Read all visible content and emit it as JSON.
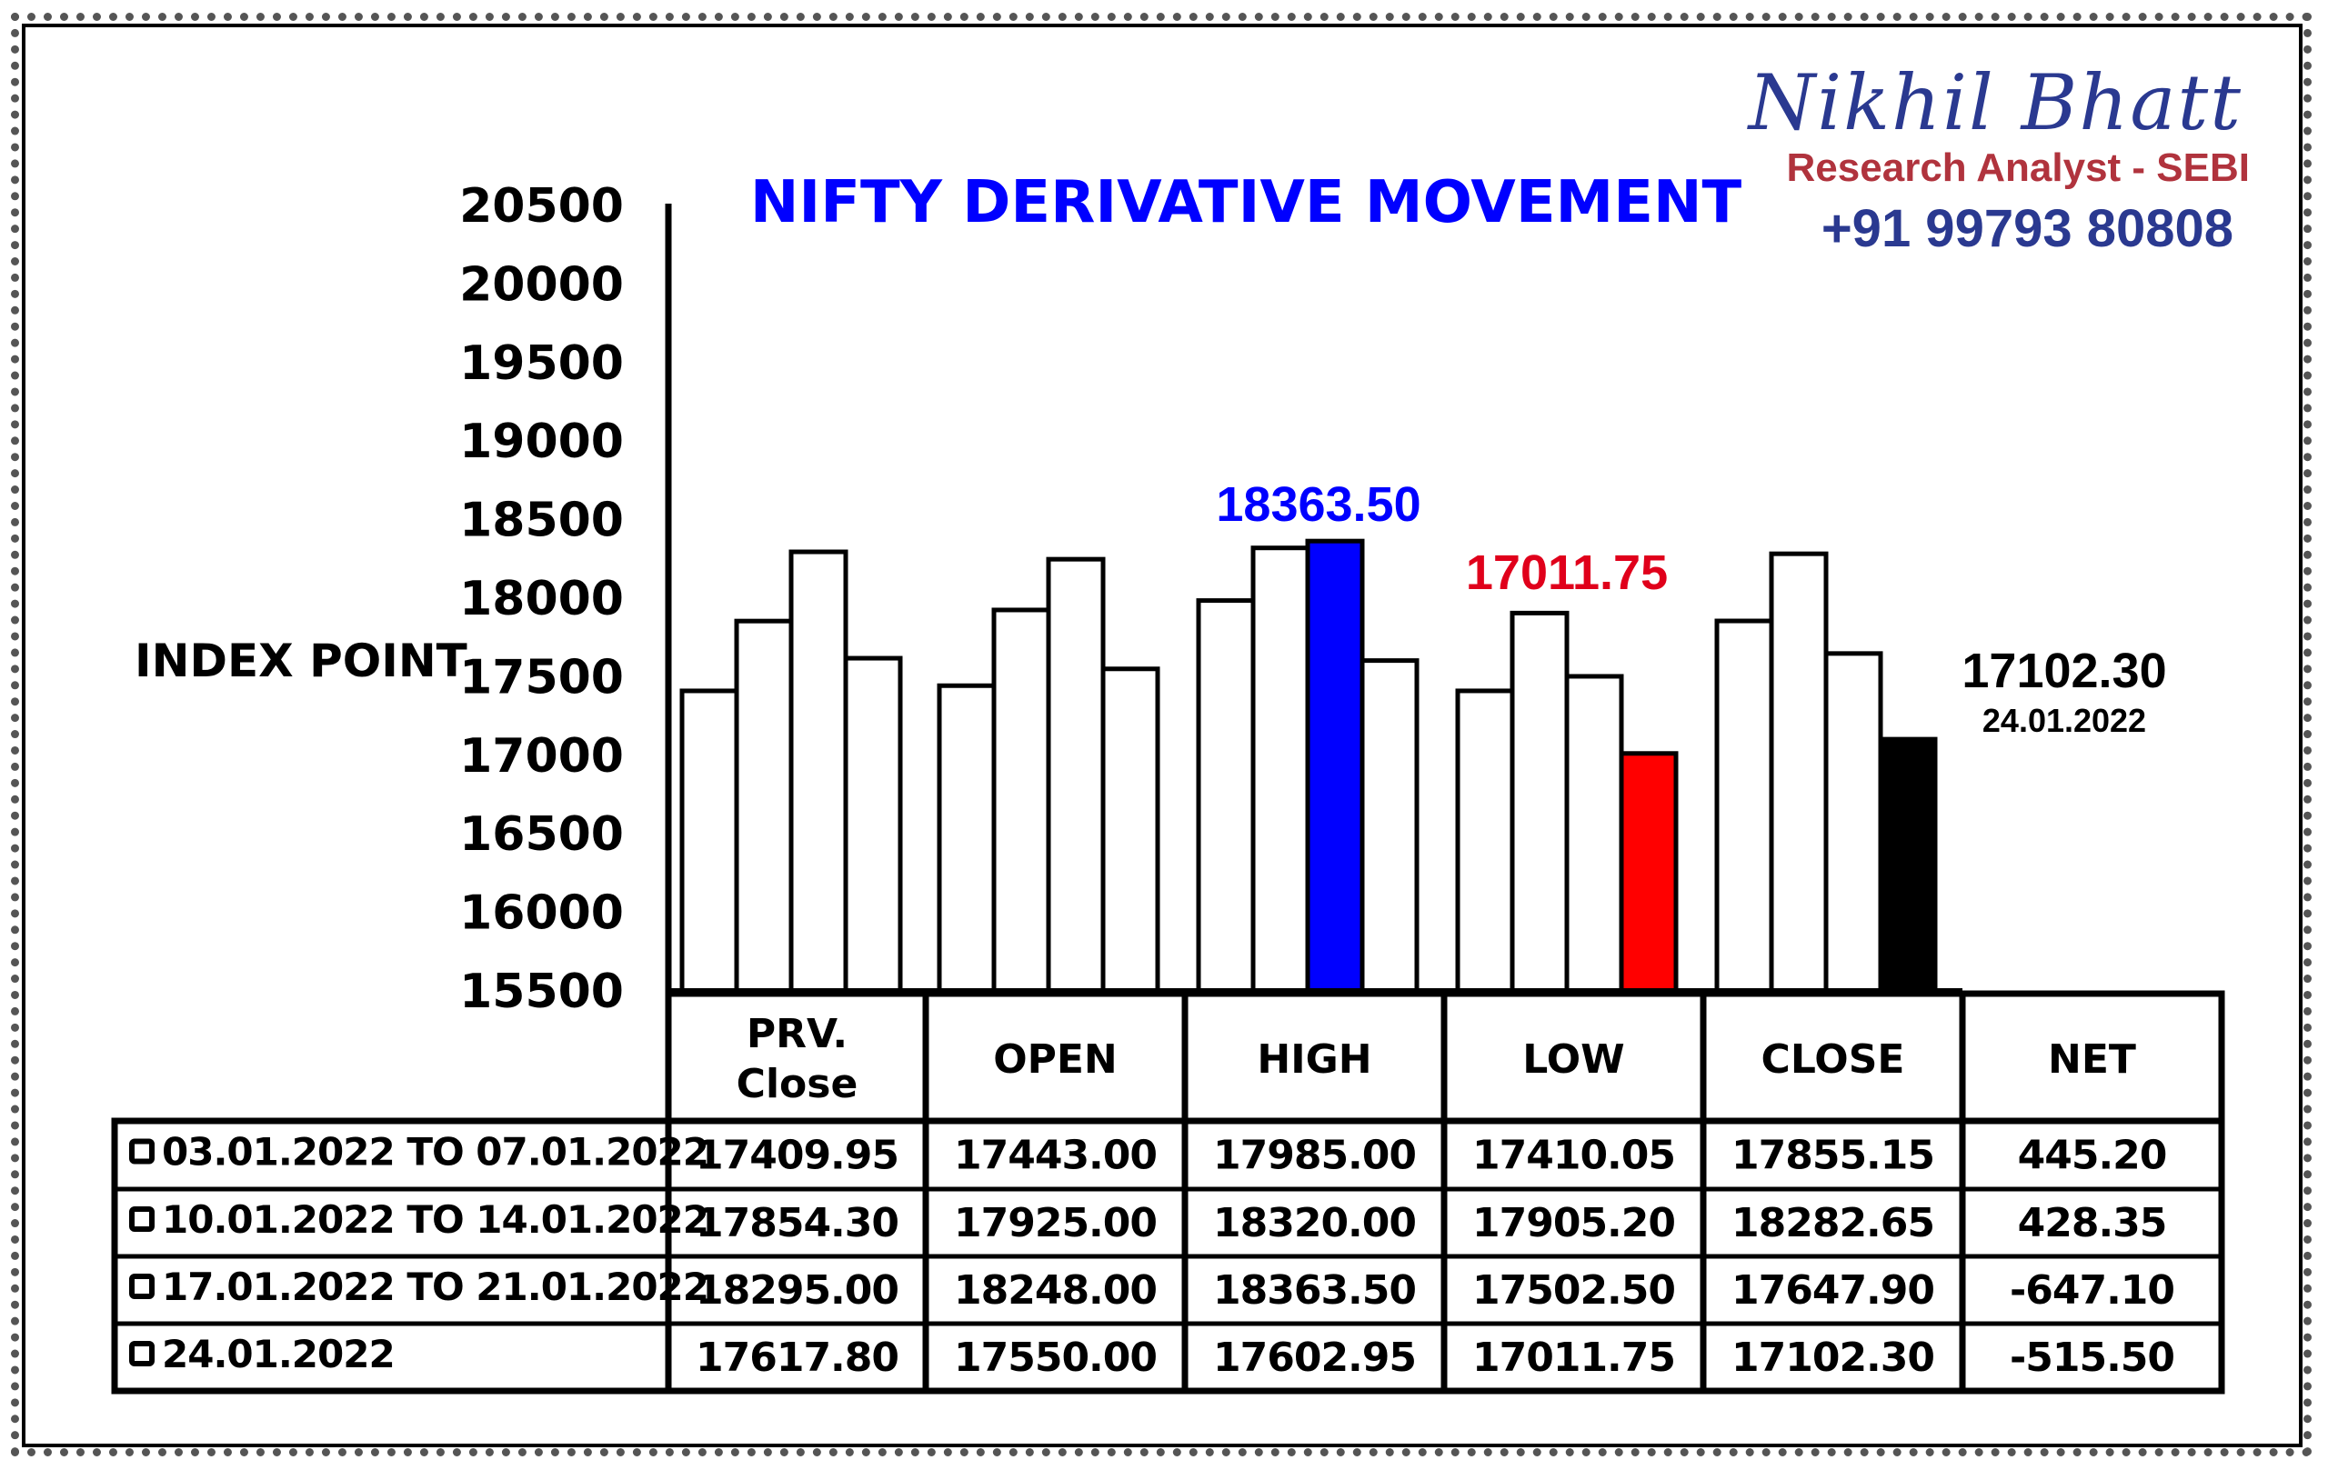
{
  "brand": {
    "name": "Nikhil Bhatt",
    "role": "Research Analyst - SEBI",
    "phone": "+91 99793 80808"
  },
  "chart_data": {
    "type": "bar",
    "title": "NIFTY DERIVATIVE MOVEMENT",
    "ylabel": "INDEX POINT",
    "ylim": [
      15500,
      20500
    ],
    "yticks": [
      20500,
      20000,
      19500,
      19000,
      18500,
      18000,
      17500,
      17000,
      16500,
      16000,
      15500
    ],
    "categories": [
      "PRV.\nClose",
      "OPEN",
      "HIGH",
      "LOW",
      "CLOSE"
    ],
    "category_labels": [
      [
        "PRV.",
        "Close"
      ],
      [
        "OPEN"
      ],
      [
        "HIGH"
      ],
      [
        "LOW"
      ],
      [
        "CLOSE"
      ]
    ],
    "series": [
      {
        "name": "03.01.2022 TO 07.01.2022",
        "values": [
          17409.95,
          17443.0,
          17985.0,
          17410.05,
          17855.15
        ]
      },
      {
        "name": "10.01.2022 TO 14.01.2022",
        "values": [
          17854.3,
          17925.0,
          18320.0,
          17905.2,
          18282.65
        ]
      },
      {
        "name": "17.01.2022 TO 21.01.2022",
        "values": [
          18295.0,
          18248.0,
          18363.5,
          17502.5,
          17647.9
        ]
      },
      {
        "name": "24.01.2022",
        "values": [
          17617.8,
          17550.0,
          17602.95,
          17011.75,
          17102.3
        ]
      }
    ],
    "highlights": [
      {
        "category_index": 2,
        "series_index": 2,
        "color": "#0000ff",
        "label": "18363.50",
        "label_color": "#0000ff"
      },
      {
        "category_index": 3,
        "series_index": 3,
        "color": "#ff0000",
        "label": "17011.75",
        "label_color": "#e0001b"
      },
      {
        "category_index": 4,
        "series_index": 3,
        "color": "#000000",
        "label": "17102.30",
        "label_color": "#000000",
        "sublabel": "24.01.2022"
      }
    ],
    "table": {
      "columns": [
        "PRV.\nClose",
        "OPEN",
        "HIGH",
        "LOW",
        "CLOSE",
        "NET"
      ],
      "rows": [
        {
          "label": "03.01.2022 TO 07.01.2022",
          "cells": [
            "17409.95",
            "17443.00",
            "17985.00",
            "17410.05",
            "17855.15",
            "445.20"
          ]
        },
        {
          "label": "10.01.2022 TO 14.01.2022",
          "cells": [
            "17854.30",
            "17925.00",
            "18320.00",
            "17905.20",
            "18282.65",
            "428.35"
          ]
        },
        {
          "label": "17.01.2022 TO 21.01.2022",
          "cells": [
            "18295.00",
            "18248.00",
            "18363.50",
            "17502.50",
            "17647.90",
            "-647.10"
          ]
        },
        {
          "label": "24.01.2022",
          "cells": [
            "17617.80",
            "17550.00",
            "17602.95",
            "17011.75",
            "17102.30",
            "-515.50"
          ]
        }
      ]
    },
    "colors": {
      "title": "#0000ff",
      "default_bar": "#ffffff"
    }
  }
}
